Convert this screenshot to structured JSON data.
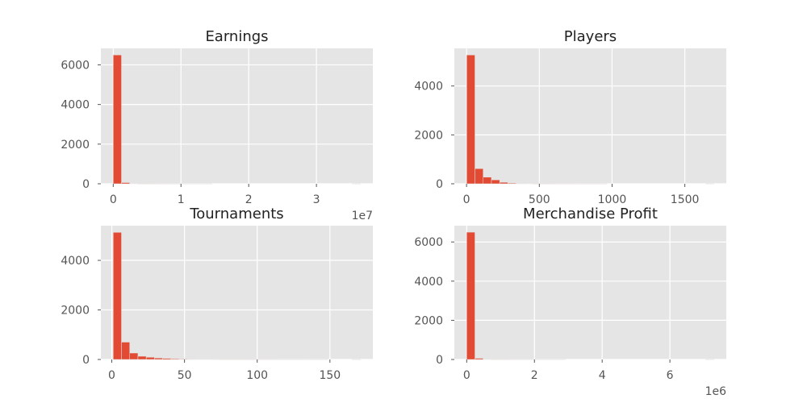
{
  "chart_data": [
    {
      "type": "bar",
      "title": "Earnings",
      "bins": 30,
      "x_range": [
        0,
        36500000
      ],
      "xlim": [
        -1825000,
        38325000
      ],
      "ylim": [
        0,
        6832
      ],
      "x_ticks": [
        0,
        10000000,
        20000000,
        30000000
      ],
      "x_tick_labels": [
        "0",
        "1",
        "2",
        "3"
      ],
      "x_offset_label": "1e7",
      "y_ticks": [
        0,
        2000,
        4000,
        6000
      ],
      "y_tick_labels": [
        "0",
        "2000",
        "4000",
        "6000"
      ],
      "grid": true,
      "color": "#e24a33",
      "values": [
        6500,
        60,
        15,
        8,
        5,
        3,
        2,
        2,
        1,
        1,
        1,
        1,
        0,
        0,
        0,
        0,
        0,
        0,
        0,
        0,
        0,
        0,
        0,
        0,
        0,
        0,
        0,
        0,
        0,
        1
      ]
    },
    {
      "type": "bar",
      "title": "Players",
      "bins": 30,
      "x_range": [
        1,
        1700
      ],
      "xlim": [
        -84,
        1785
      ],
      "ylim": [
        0,
        5540
      ],
      "x_ticks": [
        0,
        500,
        1000,
        1500
      ],
      "x_tick_labels": [
        "0",
        "500",
        "1000",
        "1500"
      ],
      "x_offset_label": "",
      "y_ticks": [
        0,
        2000,
        4000
      ],
      "y_tick_labels": [
        "0",
        "2000",
        "4000"
      ],
      "grid": true,
      "color": "#e24a33",
      "values": [
        5270,
        620,
        270,
        160,
        60,
        30,
        15,
        10,
        6,
        5,
        3,
        2,
        2,
        1,
        1,
        1,
        1,
        0,
        0,
        0,
        0,
        0,
        0,
        0,
        0,
        0,
        0,
        0,
        0,
        1
      ]
    },
    {
      "type": "bar",
      "title": "Tournaments",
      "bins": 30,
      "x_range": [
        1,
        171
      ],
      "xlim": [
        -7.5,
        179.5
      ],
      "ylim": [
        0,
        5400
      ],
      "x_ticks": [
        0,
        50,
        100,
        150
      ],
      "x_tick_labels": [
        "0",
        "50",
        "100",
        "150"
      ],
      "x_offset_label": "",
      "y_ticks": [
        0,
        2000,
        4000
      ],
      "y_tick_labels": [
        "0",
        "2000",
        "4000"
      ],
      "grid": true,
      "color": "#e24a33",
      "values": [
        5130,
        700,
        260,
        130,
        90,
        60,
        45,
        30,
        20,
        15,
        12,
        10,
        8,
        6,
        5,
        4,
        3,
        2,
        2,
        2,
        1,
        1,
        1,
        1,
        1,
        1,
        0,
        0,
        0,
        1
      ]
    },
    {
      "type": "bar",
      "title": "Merchandise Profit",
      "bins": 30,
      "x_range": [
        0,
        7300000
      ],
      "xlim": [
        -365000,
        7665000
      ],
      "ylim": [
        0,
        6832
      ],
      "x_ticks": [
        0,
        2000000,
        4000000,
        6000000
      ],
      "x_tick_labels": [
        "0",
        "2",
        "4",
        "6"
      ],
      "x_offset_label": "1e6",
      "y_ticks": [
        0,
        2000,
        4000,
        6000
      ],
      "y_tick_labels": [
        "0",
        "2000",
        "4000",
        "6000"
      ],
      "grid": true,
      "color": "#e24a33",
      "values": [
        6500,
        60,
        15,
        8,
        5,
        3,
        2,
        2,
        1,
        1,
        1,
        1,
        0,
        0,
        0,
        0,
        0,
        0,
        0,
        0,
        0,
        0,
        0,
        0,
        0,
        0,
        0,
        0,
        0,
        1
      ]
    }
  ]
}
